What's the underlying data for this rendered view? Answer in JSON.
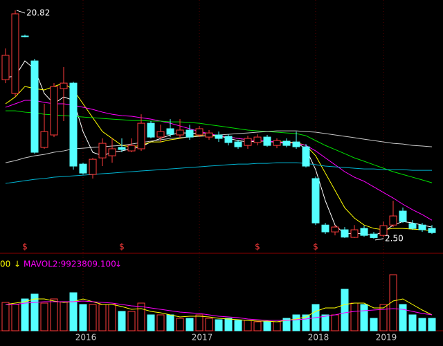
{
  "chart_data": {
    "type": "candlestick",
    "categories": [
      null,
      null,
      null,
      null,
      null,
      null,
      null,
      null,
      "2016",
      null,
      null,
      null,
      null,
      null,
      null,
      null,
      null,
      null,
      null,
      null,
      "2017",
      null,
      null,
      null,
      null,
      null,
      null,
      null,
      null,
      null,
      null,
      null,
      "2018",
      null,
      null,
      null,
      null,
      null,
      null,
      "2019",
      null,
      null,
      null,
      null,
      null
    ],
    "open": [
      15.26,
      14.15,
      18.76,
      16.76,
      9.82,
      10.82,
      14.54,
      14.98,
      8.48,
      7.65,
      8.98,
      9.15,
      9.82,
      9.54,
      9.71,
      11.76,
      10.65,
      11.32,
      10.82,
      11.21,
      10.82,
      10.65,
      10.82,
      10.71,
      10.26,
      9.98,
      10.21,
      10.65,
      9.98,
      10.32,
      10.26,
      9.87,
      7.32,
      3.59,
      3.04,
      3.21,
      2.6,
      3.32,
      2.87,
      2.76,
      3.59,
      4.71,
      3.71,
      3.59,
      3.32
    ],
    "high": [
      17.76,
      20.82,
      18.87,
      16.93,
      13.32,
      14.98,
      16.26,
      15.09,
      8.59,
      8.98,
      10.54,
      10.54,
      10.54,
      10.54,
      12.48,
      11.93,
      11.65,
      12.09,
      12.09,
      11.65,
      11.54,
      11.21,
      11.09,
      10.87,
      10.43,
      10.76,
      10.87,
      10.82,
      10.54,
      10.54,
      11.09,
      10.09,
      7.48,
      3.76,
      3.59,
      3.43,
      3.59,
      3.54,
      3.04,
      3.87,
      5.54,
      5.0,
      3.98,
      3.76,
      3.59
    ],
    "low": [
      14.98,
      13.87,
      18.65,
      9.32,
      9.71,
      10.65,
      11.93,
      8.04,
      7.65,
      7.32,
      8.32,
      8.59,
      9.43,
      9.43,
      9.54,
      10.54,
      10.26,
      10.65,
      10.54,
      10.43,
      10.65,
      10.43,
      10.26,
      9.98,
      9.71,
      9.71,
      9.98,
      9.87,
      9.76,
      9.82,
      9.71,
      8.21,
      3.59,
      2.87,
      2.76,
      2.55,
      2.55,
      2.65,
      2.5,
      2.6,
      3.43,
      3.76,
      3.21,
      3.04,
      2.87
    ],
    "close": [
      17.21,
      20.54,
      18.71,
      9.43,
      11.09,
      14.71,
      14.98,
      8.32,
      7.76,
      8.87,
      10.15,
      9.71,
      9.65,
      9.98,
      11.76,
      10.65,
      11.09,
      10.87,
      11.21,
      10.65,
      11.32,
      10.98,
      10.54,
      10.21,
      9.87,
      10.54,
      10.65,
      9.98,
      10.37,
      9.98,
      9.87,
      8.32,
      3.76,
      3.04,
      3.43,
      2.62,
      3.21,
      2.76,
      2.58,
      3.54,
      4.32,
      3.87,
      3.32,
      3.21,
      2.98
    ],
    "up_color": "#ff3c3c",
    "down_color": "#54ffff",
    "ylim": [
      1.38,
      21.65
    ],
    "moving_averages": [
      {
        "color": "#ffffff",
        "values": [
          15.43,
          15.54,
          16.76,
          16.1,
          14.15,
          13.32,
          13.87,
          13.6,
          11.09,
          9.43,
          9.15,
          9.43,
          9.54,
          9.71,
          9.87,
          10.26,
          10.54,
          10.82,
          10.98,
          10.98,
          10.93,
          10.87,
          10.76,
          10.54,
          10.37,
          10.26,
          10.32,
          10.32,
          10.21,
          10.15,
          10.21,
          9.71,
          8.04,
          5.54,
          3.59,
          2.87,
          2.93,
          2.87,
          2.76,
          3.04,
          3.59,
          3.87,
          3.76,
          3.59,
          3.43
        ]
      },
      {
        "color": "#ffff00",
        "values": [
          13.32,
          13.87,
          14.71,
          14.54,
          14.43,
          14.71,
          14.98,
          14.43,
          13.32,
          12.2,
          11.09,
          10.54,
          9.98,
          9.87,
          9.98,
          10.26,
          10.26,
          10.43,
          10.54,
          10.71,
          10.76,
          10.76,
          10.71,
          10.65,
          10.54,
          10.43,
          10.37,
          10.32,
          10.26,
          10.26,
          10.21,
          9.98,
          9.15,
          7.76,
          6.37,
          4.98,
          4.15,
          3.59,
          3.32,
          3.21,
          3.32,
          3.32,
          3.26,
          3.21,
          3.15
        ]
      },
      {
        "color": "#ff00ff",
        "values": [
          13.04,
          13.32,
          13.6,
          13.6,
          13.43,
          13.32,
          13.32,
          13.2,
          13.04,
          12.87,
          12.65,
          12.48,
          12.37,
          12.32,
          12.2,
          12.09,
          11.93,
          11.76,
          11.54,
          11.32,
          11.09,
          10.93,
          10.76,
          10.65,
          10.54,
          10.43,
          10.37,
          10.32,
          10.26,
          10.21,
          10.15,
          9.98,
          9.54,
          8.98,
          8.43,
          7.87,
          7.43,
          7.1,
          6.65,
          6.2,
          5.76,
          5.26,
          4.82,
          4.43,
          3.98
        ]
      },
      {
        "color": "#00e000",
        "values": [
          12.76,
          12.76,
          12.65,
          12.59,
          12.48,
          12.43,
          12.37,
          12.32,
          12.26,
          12.2,
          12.15,
          12.09,
          12.04,
          11.98,
          11.98,
          11.93,
          11.93,
          11.87,
          11.87,
          11.82,
          11.76,
          11.65,
          11.54,
          11.43,
          11.32,
          11.21,
          11.15,
          11.09,
          11.04,
          10.98,
          10.93,
          10.76,
          10.37,
          9.98,
          9.65,
          9.32,
          8.98,
          8.71,
          8.43,
          8.15,
          7.87,
          7.65,
          7.43,
          7.21,
          6.98
        ]
      },
      {
        "color": "#c8c8c8",
        "values": [
          8.59,
          8.76,
          8.98,
          9.15,
          9.26,
          9.43,
          9.54,
          9.71,
          9.76,
          9.82,
          9.87,
          9.93,
          9.98,
          10.09,
          10.21,
          10.32,
          10.43,
          10.54,
          10.6,
          10.65,
          10.71,
          10.76,
          10.82,
          10.87,
          10.93,
          10.98,
          11.04,
          11.09,
          11.15,
          11.15,
          11.15,
          11.09,
          11.04,
          10.93,
          10.82,
          10.71,
          10.6,
          10.48,
          10.37,
          10.26,
          10.15,
          10.09,
          9.98,
          9.93,
          9.87
        ]
      },
      {
        "color": "#00b4d2",
        "values": [
          6.93,
          7.04,
          7.15,
          7.26,
          7.32,
          7.43,
          7.48,
          7.54,
          7.59,
          7.65,
          7.71,
          7.76,
          7.82,
          7.87,
          7.93,
          7.98,
          8.04,
          8.09,
          8.15,
          8.21,
          8.26,
          8.32,
          8.37,
          8.43,
          8.48,
          8.48,
          8.54,
          8.54,
          8.59,
          8.59,
          8.59,
          8.54,
          8.43,
          8.32,
          8.26,
          8.21,
          8.15,
          8.09,
          8.09,
          8.04,
          8.04,
          8.04,
          7.98,
          7.98,
          7.98
        ]
      }
    ],
    "extreme_labels": [
      {
        "index": 1,
        "value": 20.82,
        "label": "20.82"
      },
      {
        "index": 38,
        "value": 2.5,
        "label": "2.50"
      }
    ],
    "markers": [
      {
        "index": 2,
        "label": "$"
      },
      {
        "index": 12,
        "label": "$"
      },
      {
        "index": 26,
        "label": "$"
      },
      {
        "index": 32,
        "label": "$"
      }
    ],
    "volume": [
      17630000,
      16340000,
      19780000,
      22790000,
      17200000,
      19780000,
      18060000,
      23650000,
      16340000,
      16340000,
      16340000,
      16340000,
      12040000,
      12040000,
      17200000,
      9890000,
      9890000,
      9890000,
      7740000,
      7740000,
      9890000,
      7740000,
      6880000,
      7740000,
      6450000,
      6450000,
      5590000,
      5590000,
      5590000,
      7740000,
      9890000,
      9890000,
      16340000,
      9890000,
      9890000,
      25800000,
      17200000,
      16340000,
      7740000,
      16340000,
      34830000,
      16340000,
      9890000,
      7740000,
      7740000
    ],
    "volume_ylim": [
      0,
      43000000
    ],
    "volume_averages": [
      {
        "name": "MAVOL1",
        "color": "#ffff00",
        "values": [
          16340000,
          17200000,
          18060000,
          19780000,
          19780000,
          18490000,
          17630000,
          18060000,
          19780000,
          18060000,
          16340000,
          16340000,
          15050000,
          13330000,
          13760000,
          12040000,
          11180000,
          9890000,
          8600000,
          9030000,
          9030000,
          8600000,
          7740000,
          7310000,
          6880000,
          6450000,
          6020000,
          6020000,
          5590000,
          6450000,
          7310000,
          8600000,
          12040000,
          14190000,
          14190000,
          16340000,
          17200000,
          17200000,
          14190000,
          14190000,
          18490000,
          19780000,
          16340000,
          12900000,
          9890000
        ]
      },
      {
        "name": "MAVOL2",
        "color": "#ff00ff",
        "values": [
          16340000,
          16340000,
          17200000,
          17630000,
          18060000,
          18060000,
          18060000,
          18060000,
          18490000,
          18060000,
          17630000,
          17200000,
          16340000,
          15480000,
          15050000,
          14190000,
          13330000,
          12470000,
          11610000,
          11180000,
          10750000,
          9890000,
          9030000,
          8600000,
          8170000,
          7310000,
          6880000,
          6450000,
          6450000,
          6450000,
          6880000,
          7310000,
          8170000,
          9030000,
          9890000,
          11180000,
          12040000,
          12470000,
          12900000,
          13330000,
          13760000,
          13330000,
          12040000,
          10750000,
          9923809.1
        ]
      }
    ],
    "volume_header": {
      "mavol1_tail": "00",
      "mavol1_arrow": "↓",
      "mavol2_text": "MAVOL2:9923809.100",
      "mavol2_arrow": "↓"
    }
  }
}
